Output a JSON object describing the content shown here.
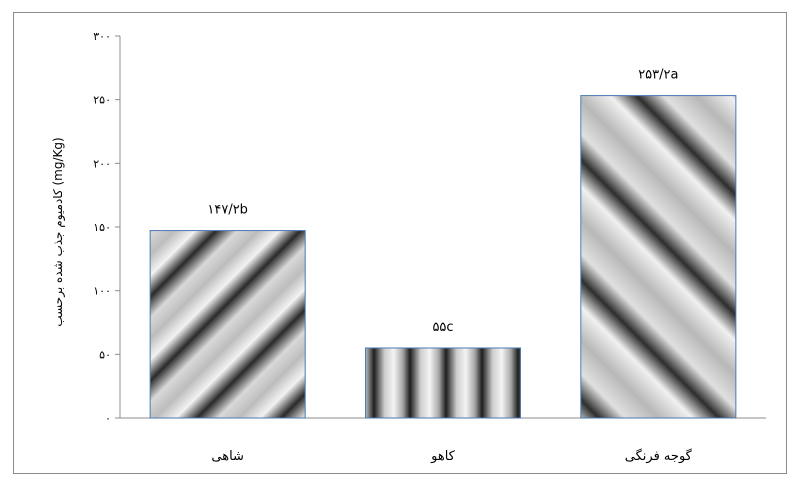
{
  "chart_data": {
    "type": "bar",
    "title": "",
    "xlabel": "",
    "ylabel": "کادمیوم جذب شده برحسب (mg/Kg)",
    "ylim": [
      0,
      300
    ],
    "yticks": [
      "۰",
      "۵۰",
      "۱۰۰",
      "۱۵۰",
      "۲۰۰",
      "۲۵۰",
      "۳۰۰"
    ],
    "yticks_values": [
      0,
      50,
      100,
      150,
      200,
      250,
      300
    ],
    "categories": [
      "شاهی",
      "کاهو",
      "گوجه فرنگی"
    ],
    "values": [
      147.2,
      55,
      253.2
    ],
    "data_labels": [
      "۱۴۷/۲b",
      "۵۵c",
      "۲۵۳/۲a"
    ],
    "legend": "none",
    "grid": false
  }
}
